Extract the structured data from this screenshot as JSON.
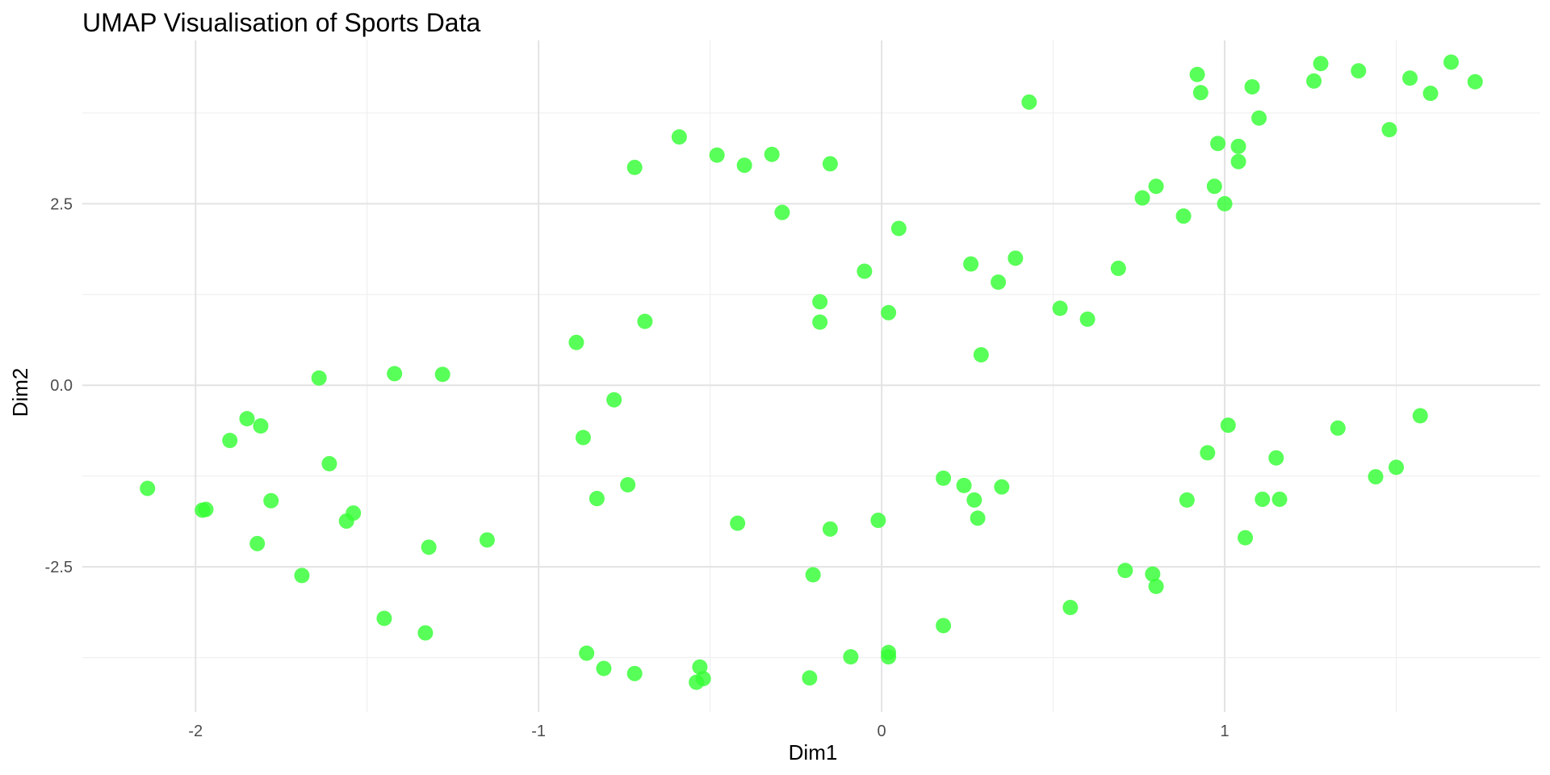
{
  "chart_data": {
    "type": "scatter",
    "title": "UMAP Visualisation of Sports Data",
    "xlabel": "Dim1",
    "ylabel": "Dim2",
    "xlim": [
      -2.33,
      1.92
    ],
    "ylim": [
      -4.5,
      4.75
    ],
    "x_ticks": [
      -2,
      -1,
      0,
      1
    ],
    "x_tick_labels": [
      "-2",
      "-1",
      "0",
      "1"
    ],
    "y_ticks": [
      2.5,
      0,
      -2.5
    ],
    "y_tick_labels": [
      "2.5",
      "0.0",
      "-2.5"
    ],
    "grid": true,
    "legend": "none",
    "point_color": "#33ff33",
    "points": [
      {
        "x": -2.14,
        "y": -1.42
      },
      {
        "x": -1.98,
        "y": -1.72
      },
      {
        "x": -1.97,
        "y": -1.71
      },
      {
        "x": -1.9,
        "y": -0.76
      },
      {
        "x": -1.85,
        "y": -0.46
      },
      {
        "x": -1.81,
        "y": -0.56
      },
      {
        "x": -1.82,
        "y": -2.18
      },
      {
        "x": -1.78,
        "y": -1.59
      },
      {
        "x": -1.69,
        "y": -2.62
      },
      {
        "x": -1.64,
        "y": 0.1
      },
      {
        "x": -1.61,
        "y": -1.08
      },
      {
        "x": -1.56,
        "y": -1.87
      },
      {
        "x": -1.54,
        "y": -1.76
      },
      {
        "x": -1.45,
        "y": -3.21
      },
      {
        "x": -1.42,
        "y": 0.16
      },
      {
        "x": -1.33,
        "y": -3.41
      },
      {
        "x": -1.32,
        "y": -2.23
      },
      {
        "x": -1.28,
        "y": 0.15
      },
      {
        "x": -1.15,
        "y": -2.13
      },
      {
        "x": -0.89,
        "y": 0.59
      },
      {
        "x": -0.87,
        "y": -0.72
      },
      {
        "x": -0.86,
        "y": -3.69
      },
      {
        "x": -0.83,
        "y": -1.56
      },
      {
        "x": -0.81,
        "y": -3.9
      },
      {
        "x": -0.78,
        "y": -0.2
      },
      {
        "x": -0.74,
        "y": -1.37
      },
      {
        "x": -0.72,
        "y": 3.0
      },
      {
        "x": -0.72,
        "y": -3.97
      },
      {
        "x": -0.69,
        "y": 0.88
      },
      {
        "x": -0.59,
        "y": 3.42
      },
      {
        "x": -0.54,
        "y": -4.09
      },
      {
        "x": -0.53,
        "y": -3.88
      },
      {
        "x": -0.52,
        "y": -4.04
      },
      {
        "x": -0.48,
        "y": 3.17
      },
      {
        "x": -0.42,
        "y": -1.9
      },
      {
        "x": -0.4,
        "y": 3.03
      },
      {
        "x": -0.32,
        "y": 3.18
      },
      {
        "x": -0.29,
        "y": 2.38
      },
      {
        "x": -0.2,
        "y": -2.61
      },
      {
        "x": -0.21,
        "y": -4.03
      },
      {
        "x": -0.18,
        "y": 1.15
      },
      {
        "x": -0.18,
        "y": 0.87
      },
      {
        "x": -0.15,
        "y": 3.05
      },
      {
        "x": -0.15,
        "y": -1.98
      },
      {
        "x": -0.09,
        "y": -3.74
      },
      {
        "x": -0.05,
        "y": 1.57
      },
      {
        "x": -0.01,
        "y": -1.86
      },
      {
        "x": 0.02,
        "y": -3.74
      },
      {
        "x": 0.02,
        "y": -3.68
      },
      {
        "x": 0.02,
        "y": 1.0
      },
      {
        "x": 0.05,
        "y": 2.16
      },
      {
        "x": 0.18,
        "y": -1.28
      },
      {
        "x": 0.18,
        "y": -3.31
      },
      {
        "x": 0.24,
        "y": -1.38
      },
      {
        "x": 0.26,
        "y": 1.67
      },
      {
        "x": 0.27,
        "y": -1.58
      },
      {
        "x": 0.28,
        "y": -1.83
      },
      {
        "x": 0.29,
        "y": 0.42
      },
      {
        "x": 0.34,
        "y": 1.42
      },
      {
        "x": 0.35,
        "y": -1.4
      },
      {
        "x": 0.39,
        "y": 1.75
      },
      {
        "x": 0.43,
        "y": 3.9
      },
      {
        "x": 0.52,
        "y": 1.06
      },
      {
        "x": 0.55,
        "y": -3.06
      },
      {
        "x": 0.6,
        "y": 0.91
      },
      {
        "x": 0.69,
        "y": 1.61
      },
      {
        "x": 0.71,
        "y": -2.55
      },
      {
        "x": 0.76,
        "y": 2.58
      },
      {
        "x": 0.79,
        "y": -2.6
      },
      {
        "x": 0.8,
        "y": 2.74
      },
      {
        "x": 0.8,
        "y": -2.77
      },
      {
        "x": 0.88,
        "y": 2.33
      },
      {
        "x": 0.89,
        "y": -1.58
      },
      {
        "x": 0.92,
        "y": 4.28
      },
      {
        "x": 0.93,
        "y": 4.03
      },
      {
        "x": 0.95,
        "y": -0.93
      },
      {
        "x": 0.97,
        "y": 2.74
      },
      {
        "x": 0.98,
        "y": 3.33
      },
      {
        "x": 1.0,
        "y": 2.5
      },
      {
        "x": 1.01,
        "y": -0.55
      },
      {
        "x": 1.04,
        "y": 3.29
      },
      {
        "x": 1.04,
        "y": 3.08
      },
      {
        "x": 1.06,
        "y": -2.1
      },
      {
        "x": 1.08,
        "y": 4.11
      },
      {
        "x": 1.1,
        "y": 3.68
      },
      {
        "x": 1.11,
        "y": -1.57
      },
      {
        "x": 1.15,
        "y": -1.0
      },
      {
        "x": 1.16,
        "y": -1.57
      },
      {
        "x": 1.26,
        "y": 4.19
      },
      {
        "x": 1.28,
        "y": 4.43
      },
      {
        "x": 1.33,
        "y": -0.59
      },
      {
        "x": 1.39,
        "y": 4.33
      },
      {
        "x": 1.44,
        "y": -1.26
      },
      {
        "x": 1.48,
        "y": 3.52
      },
      {
        "x": 1.5,
        "y": -1.13
      },
      {
        "x": 1.54,
        "y": 4.23
      },
      {
        "x": 1.57,
        "y": -0.42
      },
      {
        "x": 1.6,
        "y": 4.02
      },
      {
        "x": 1.66,
        "y": 4.45
      },
      {
        "x": 1.73,
        "y": 4.18
      }
    ]
  }
}
